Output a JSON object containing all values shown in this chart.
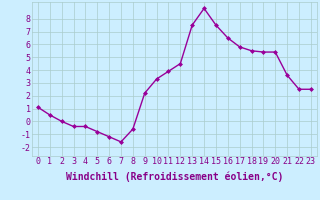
{
  "x": [
    0,
    1,
    2,
    3,
    4,
    5,
    6,
    7,
    8,
    9,
    10,
    11,
    12,
    13,
    14,
    15,
    16,
    17,
    18,
    19,
    20,
    21,
    22,
    23
  ],
  "y": [
    1.1,
    0.5,
    0.0,
    -0.4,
    -0.4,
    -0.8,
    -1.2,
    -1.6,
    -0.6,
    2.2,
    3.3,
    3.9,
    4.5,
    7.5,
    8.8,
    7.5,
    6.5,
    5.8,
    5.5,
    5.4,
    5.4,
    3.6,
    2.5,
    2.5
  ],
  "line_color": "#990099",
  "marker": "D",
  "marker_size": 2,
  "bg_color": "#cceeff",
  "grid_color": "#aacccc",
  "xlabel": "Windchill (Refroidissement éolien,°C)",
  "xlim": [
    -0.5,
    23.5
  ],
  "ylim": [
    -2.7,
    9.3
  ],
  "xticks": [
    0,
    1,
    2,
    3,
    4,
    5,
    6,
    7,
    8,
    9,
    10,
    11,
    12,
    13,
    14,
    15,
    16,
    17,
    18,
    19,
    20,
    21,
    22,
    23
  ],
  "yticks": [
    -2,
    -1,
    0,
    1,
    2,
    3,
    4,
    5,
    6,
    7,
    8
  ],
  "tick_fontsize": 6,
  "xlabel_fontsize": 7,
  "label_color": "#880088",
  "linewidth": 1.0
}
